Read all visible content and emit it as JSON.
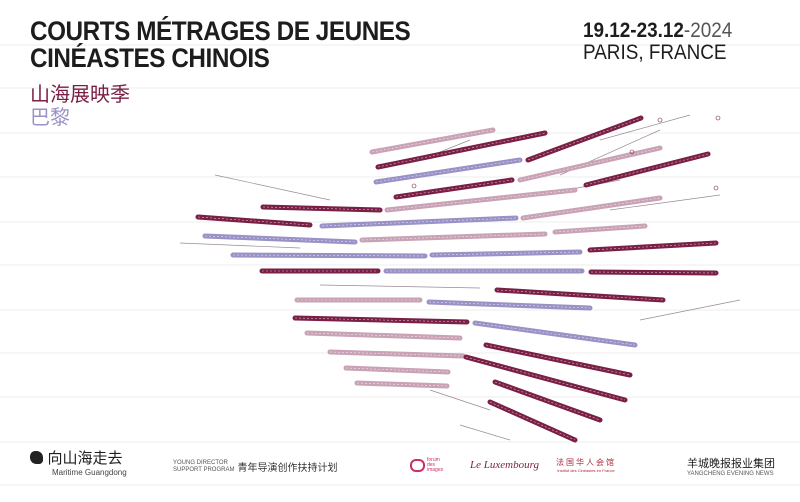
{
  "header": {
    "title_line1": "COURTS MÉTRAGES DE JEUNES",
    "title_line2": "CINÉASTES CHINOIS",
    "chinese_title": "山海展映季",
    "chinese_city": "巴黎",
    "date_range": "19.12-23.12",
    "year": "-2024",
    "location": "PARIS, FRANCE"
  },
  "colors": {
    "maroon": "#7a1f45",
    "pink": "#c9a3b5",
    "lavender": "#9a92c6"
  },
  "footer": {
    "maritime_cn": "向山海走去",
    "maritime_en": "Maritime Guangdong",
    "program_en_1": "YOUNG DIRECTOR",
    "program_en_2": "SUPPORT PROGRAM",
    "program_cn": "青年导演创作扶持计划",
    "forum": "forum des images",
    "luxembourg": "Le Luxembourg",
    "institute_cn": "法国华人会馆",
    "institute_en": "Institut des Cinéastes en France",
    "yangcheng_cn": "羊城晚报报业集团",
    "yangcheng_en": "YANGCHENG EVENING NEWS"
  }
}
